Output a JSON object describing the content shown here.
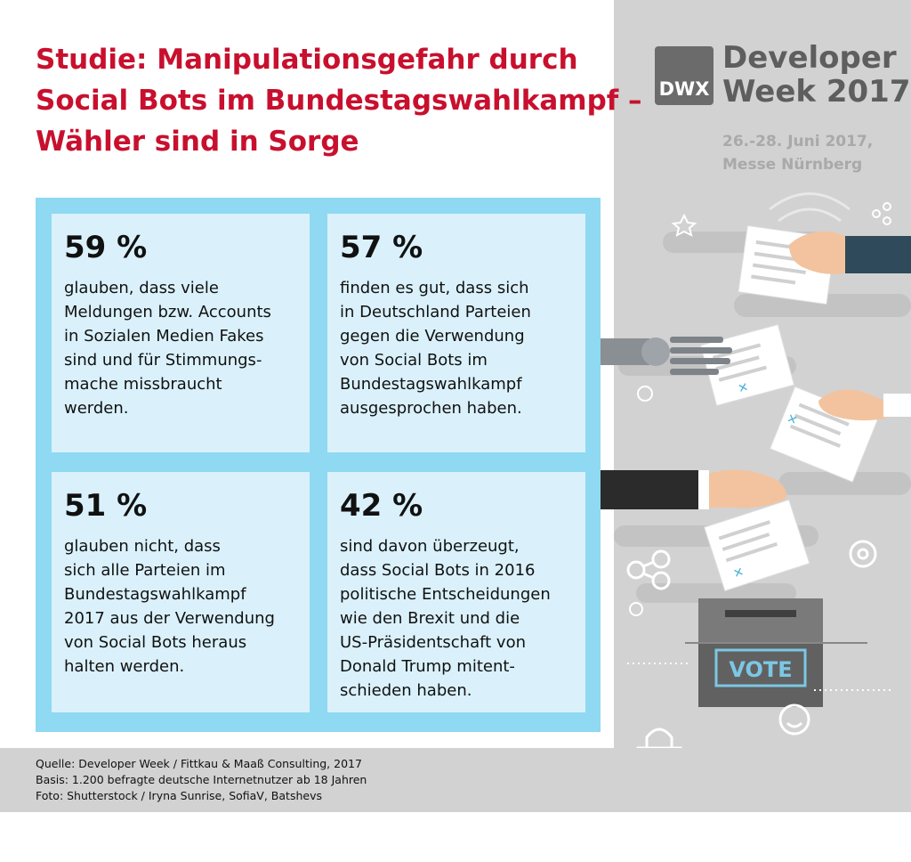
{
  "title": {
    "lines": [
      "Studie: Manipulationsgefahr durch",
      "Social Bots im Bundestagswahlkampf –",
      "Wähler sind in Sorge"
    ]
  },
  "logo": {
    "abbr": "DWX",
    "lines": [
      "Developer",
      "Week 2017"
    ]
  },
  "event": {
    "date": "26.-28. Juni 2017,",
    "location": "Messe Nürnberg"
  },
  "cards": [
    {
      "percent": "59 %",
      "text": "glauben, dass viele\nMeldungen bzw. Accounts\nin Sozialen Medien Fakes\nsind und für Stimmungs-\nmache missbraucht\nwerden."
    },
    {
      "percent": "57 %",
      "text": "finden es gut, dass sich\nin Deutschland Parteien\ngegen die Verwendung\nvon Social Bots im\nBundestagswahlkampf\nausgesprochen haben."
    },
    {
      "percent": "51 %",
      "text": "glauben nicht, dass\nsich alle Parteien im\nBundestagswahlkampf\n2017 aus der Verwendung\nvon Social Bots heraus\nhalten werden."
    },
    {
      "percent": "42 %",
      "text": "sind davon überzeugt,\ndass Social Bots in 2016\npolitische Entscheidungen\nwie den Brexit und die\nUS-Präsidentschaft von\nDonald Trump mitent-\nschieden haben."
    }
  ],
  "illustration": {
    "ballot_box_label": "VOTE"
  },
  "footer": {
    "source": "Quelle: Developer Week / Fittkau & Maaß Consulting, 2017",
    "basis": "Basis: 1.200 befragte deutsche Internetnutzer ab 18 Jahren",
    "photo": "Foto: Shutterstock / Iryna Sunrise, SofiaV, Batshevs"
  },
  "colors": {
    "title": "#c8102e",
    "grid_frame": "#8fd9f3",
    "card": "#daf1fb",
    "panel": "#d2d2d2"
  }
}
